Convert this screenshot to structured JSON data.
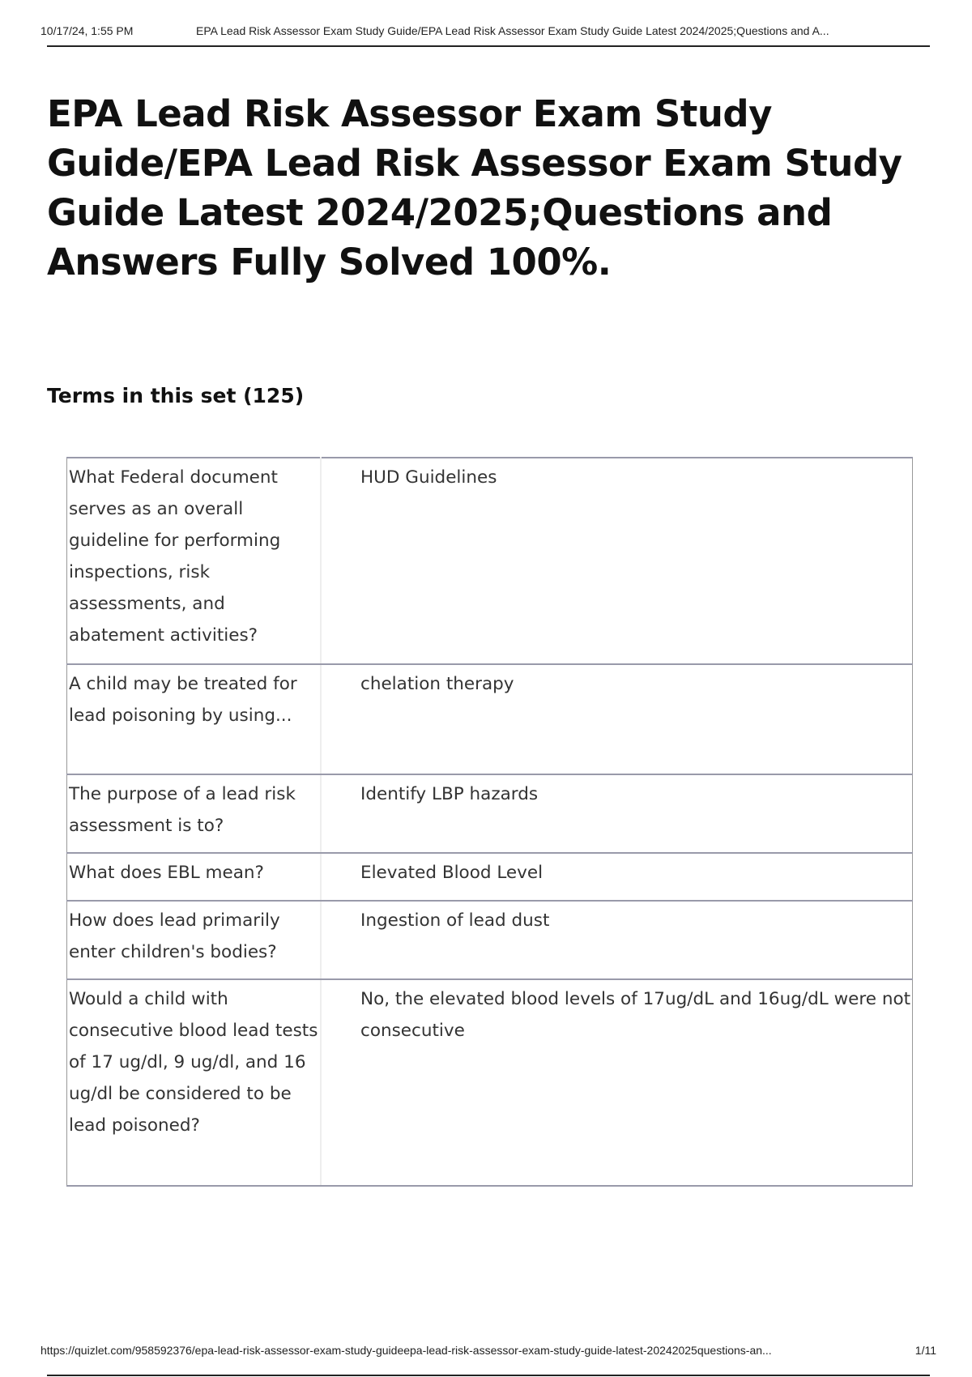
{
  "header": {
    "datetime": "10/17/24, 1:55 PM",
    "doc_title": "EPA Lead Risk Assessor Exam Study Guide/EPA Lead Risk Assessor Exam Study Guide Latest 2024/2025;Questions and A..."
  },
  "title": "EPA Lead Risk Assessor Exam Study Guide/EPA Lead Risk Assessor Exam Study Guide Latest 2024/2025;Questions and Answers Fully Solved 100%.",
  "terms_heading": "Terms in this set (125)",
  "cards": [
    {
      "term": "What Federal document serves as an overall guideline for performing inspections, risk assessments, and abatement activities?",
      "definition": "HUD Guidelines"
    },
    {
      "term": "A child may be treated for lead poisoning by using...",
      "definition": "chelation therapy"
    },
    {
      "term": "The purpose of a lead risk assessment is to?",
      "definition": "Identify LBP hazards"
    },
    {
      "term": "What does EBL mean?",
      "definition": "Elevated Blood Level"
    },
    {
      "term": "How does lead primarily enter children's bodies?",
      "definition": "Ingestion of lead dust"
    },
    {
      "term": "Would a child with consecutive blood lead tests of 17 ug/dl, 9 ug/dl, and 16 ug/dl be considered to be lead poisoned?",
      "definition": "No, the elevated blood levels of 17ug/dL and 16ug/dL were not consecutive"
    }
  ],
  "footer": {
    "url": "https://quizlet.com/958592376/epa-lead-risk-assessor-exam-study-guideepa-lead-risk-assessor-exam-study-guide-latest-20242025questions-an...",
    "page": "1/11"
  }
}
